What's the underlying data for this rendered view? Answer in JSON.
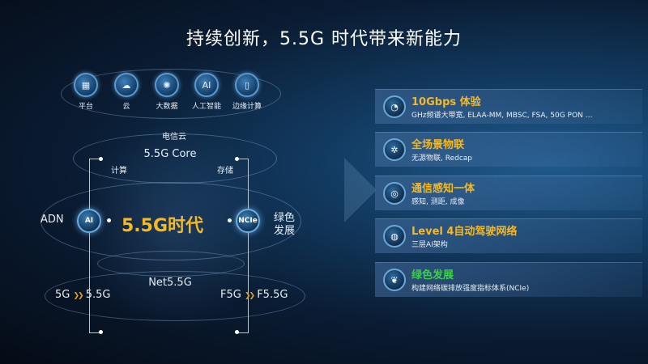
{
  "title": "持续创新，5.5G 时代带来新能力",
  "top_icons": [
    {
      "label": "平台",
      "icon": "platform-icon",
      "glyph": "▦"
    },
    {
      "label": "云",
      "icon": "cloud-icon",
      "glyph": "☁"
    },
    {
      "label": "大数据",
      "icon": "big-data-icon",
      "glyph": "✺"
    },
    {
      "label": "人工智能",
      "icon": "ai-chip-icon",
      "glyph": "AI"
    },
    {
      "label": "边缘计算",
      "icon": "edge-computing-icon",
      "glyph": "▯"
    }
  ],
  "diagram": {
    "cloud_label": "电信云",
    "core_label": "5.5G Core",
    "compute_label": "计算",
    "storage_label": "存储",
    "center_label": "5.5G时代",
    "left_node": "AI",
    "left_label": "ADN",
    "right_node": "NCIe",
    "right_label_1": "绿色",
    "right_label_2": "发展",
    "net_label": "Net5.5G",
    "bottom_left_from": "5G",
    "bottom_left_to": "5.5G",
    "bottom_right_from": "F5G",
    "bottom_right_to": "F5.5G",
    "arrow_glyph": "❯❯"
  },
  "capabilities": [
    {
      "title": "10Gbps 体验",
      "subtitle": "GHz频谱大带宽, ELAA-MM, MBSC, FSA, 50G PON …",
      "icon": "speed-gauge-icon",
      "glyph": "◔",
      "color": "#f5b922"
    },
    {
      "title": "全场景物联",
      "subtitle": "无源物联, Redcap",
      "icon": "iot-network-icon",
      "glyph": "✲",
      "color": "#f5b922"
    },
    {
      "title": "通信感知一体",
      "subtitle": "感知, 测距, 成像",
      "icon": "sensing-icon",
      "glyph": "◎",
      "color": "#f5b922"
    },
    {
      "title": "Level 4自动驾驶网络",
      "subtitle": "三层AI架构",
      "icon": "globe-network-icon",
      "glyph": "◍",
      "color": "#f5b922"
    },
    {
      "title": "绿色发展",
      "subtitle": "构建网络碳排放强度指标体系(NCIe)",
      "icon": "leaf-icon",
      "glyph": "❦",
      "color": "#3ccf4e"
    }
  ],
  "colors": {
    "accent_yellow": "#f5b922",
    "green": "#3ccf4e",
    "background": "#0a1c33"
  }
}
